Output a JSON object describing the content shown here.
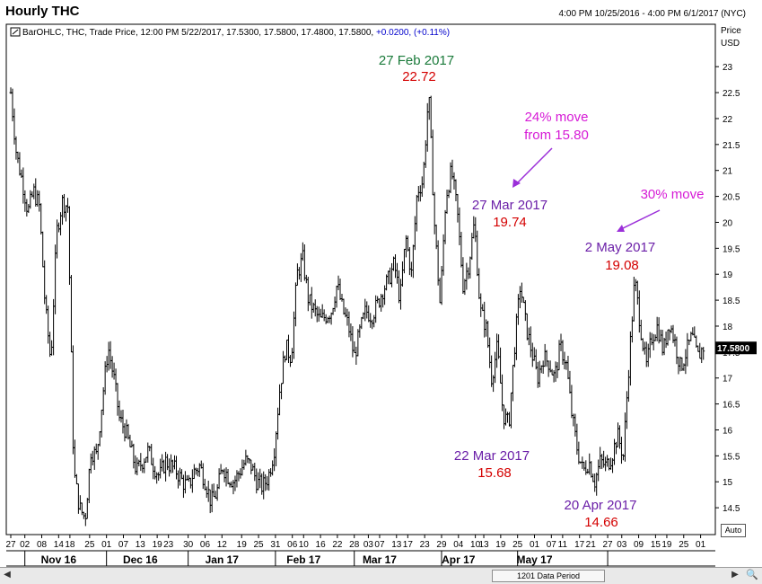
{
  "header": {
    "title": "Hourly THC",
    "date_range": "4:00 PM 10/25/2016 - 4:00 PM 6/1/2017 (NYC)"
  },
  "legend": {
    "text": "BarOHLC, THC, Trade Price, 12:00 PM 5/22/2017, 17.5300, 17.5800, 17.4800, 17.5800, ",
    "change": "+0.0200, (+0.11%)",
    "change_color": "#0000cc"
  },
  "controls": {
    "scroll_label": "1201 Data Period",
    "auto_label": "Auto"
  },
  "colors": {
    "bars": "#000000",
    "date_text": "#6b1fa8",
    "feb_date_text": "#1a7a3a",
    "price_text": "#d40000",
    "move_text": "#d61ad6",
    "arrow": "#9b2fd9"
  },
  "chart_data": {
    "type": "bar",
    "style": "OHLC",
    "symbol": "THC",
    "y_axis_title": [
      "Price",
      "USD"
    ],
    "ylim": [
      14.0,
      23.8
    ],
    "y_ticks": [
      14.5,
      15,
      15.5,
      16,
      16.5,
      17,
      17.5,
      18,
      18.5,
      19,
      19.5,
      20,
      20.5,
      21,
      21.5,
      22,
      22.5,
      23
    ],
    "y_tick_labels": [
      "14.5",
      "15",
      "15.5",
      "16",
      "16.5",
      "17",
      "17.5",
      "18",
      "18.5",
      "19",
      "19.5",
      "20",
      "20.5",
      "21",
      "21.5",
      "22",
      "22.5",
      "23"
    ],
    "last_price_label": "17.5800",
    "last_price": 17.58,
    "x_day_labels": [
      "27",
      "02",
      "08",
      "14",
      "18",
      "25",
      "01",
      "07",
      "13",
      "19",
      "23",
      "30",
      "06",
      "12",
      "19",
      "25",
      "31",
      "06",
      "10",
      "16",
      "22",
      "28",
      "03",
      "07",
      "13",
      "17",
      "23",
      "29",
      "04",
      "10",
      "13",
      "19",
      "25",
      "01",
      "07",
      "11",
      "17",
      "21",
      "27",
      "03",
      "09",
      "15",
      "19",
      "25",
      "01"
    ],
    "x_day_positions": [
      0,
      5,
      11,
      17,
      21,
      28,
      34,
      40,
      46,
      52,
      56,
      63,
      69,
      75,
      82,
      88,
      94,
      100,
      104,
      110,
      116,
      122,
      127,
      131,
      137,
      141,
      147,
      153,
      159,
      165,
      168,
      174,
      180,
      186,
      192,
      196,
      202,
      206,
      212,
      217,
      223,
      229,
      233,
      239,
      245
    ],
    "x_month_labels": [
      "Nov 16",
      "Dec 16",
      "Jan 17",
      "Feb 17",
      "Mar 17",
      "Apr 17",
      "May 17"
    ],
    "x_month_positions": [
      17,
      46,
      75,
      104,
      131,
      159,
      186
    ],
    "x_month_boundaries": [
      5,
      34,
      63,
      94,
      122,
      153,
      180,
      212
    ],
    "x_total_days": 248,
    "series": [
      {
        "price_path": [
          [
            0,
            22.5
          ],
          [
            1,
            21.3
          ],
          [
            2,
            20.8
          ],
          [
            3,
            20.2
          ],
          [
            4,
            20.6
          ],
          [
            5,
            20.3
          ],
          [
            6,
            18.4
          ],
          [
            7,
            17.3
          ],
          [
            8,
            19.8
          ],
          [
            9,
            20.4
          ],
          [
            10,
            20.3
          ],
          [
            11,
            15.2
          ],
          [
            12,
            14.5
          ],
          [
            13,
            14.3
          ],
          [
            14,
            15.6
          ],
          [
            15,
            15.5
          ],
          [
            16,
            16.6
          ],
          [
            17,
            17.6
          ],
          [
            18,
            17.0
          ],
          [
            19,
            16.2
          ],
          [
            20,
            16.0
          ],
          [
            21,
            15.6
          ],
          [
            22,
            15.2
          ],
          [
            23,
            15.4
          ],
          [
            24,
            15.6
          ],
          [
            25,
            15.3
          ],
          [
            26,
            15.1
          ],
          [
            27,
            15.4
          ],
          [
            28,
            15.3
          ],
          [
            29,
            15.2
          ],
          [
            30,
            15.0
          ],
          [
            31,
            14.9
          ],
          [
            32,
            15.2
          ],
          [
            33,
            15.3
          ],
          [
            34,
            15.0
          ],
          [
            35,
            14.6
          ],
          [
            36,
            14.8
          ],
          [
            37,
            15.3
          ],
          [
            38,
            15.1
          ],
          [
            39,
            15.0
          ],
          [
            40,
            15.2
          ],
          [
            41,
            15.4
          ],
          [
            42,
            15.3
          ],
          [
            43,
            15.0
          ],
          [
            44,
            14.9
          ],
          [
            45,
            15.1
          ],
          [
            46,
            15.6
          ],
          [
            47,
            16.8
          ],
          [
            48,
            17.6
          ],
          [
            49,
            17.4
          ],
          [
            50,
            19.0
          ],
          [
            51,
            19.3
          ],
          [
            52,
            18.5
          ],
          [
            53,
            18.3
          ],
          [
            54,
            18.1
          ],
          [
            55,
            18.2
          ],
          [
            56,
            18.3
          ],
          [
            57,
            18.8
          ],
          [
            58,
            18.3
          ],
          [
            59,
            18.0
          ],
          [
            60,
            17.4
          ],
          [
            61,
            17.9
          ],
          [
            62,
            18.3
          ],
          [
            63,
            18.2
          ],
          [
            64,
            18.4
          ],
          [
            65,
            18.7
          ],
          [
            66,
            18.9
          ],
          [
            67,
            19.2
          ],
          [
            68,
            18.5
          ],
          [
            69,
            19.7
          ],
          [
            70,
            19.0
          ],
          [
            71,
            20.6
          ],
          [
            72,
            20.8
          ],
          [
            73,
            22.5
          ],
          [
            74,
            20.0
          ],
          [
            75,
            18.4
          ],
          [
            76,
            20.5
          ],
          [
            77,
            21.0
          ],
          [
            78,
            20.2
          ],
          [
            79,
            18.8
          ],
          [
            80,
            19.2
          ],
          [
            81,
            20.0
          ],
          [
            82,
            18.3
          ],
          [
            83,
            18.0
          ],
          [
            84,
            17.0
          ],
          [
            85,
            17.6
          ],
          [
            86,
            16.3
          ],
          [
            87,
            16.1
          ],
          [
            88,
            17.6
          ],
          [
            89,
            18.8
          ],
          [
            90,
            18.0
          ],
          [
            91,
            17.5
          ],
          [
            92,
            17.0
          ],
          [
            93,
            17.4
          ],
          [
            94,
            17.3
          ],
          [
            95,
            17.0
          ],
          [
            96,
            17.6
          ],
          [
            97,
            17.3
          ],
          [
            98,
            16.3
          ],
          [
            99,
            15.6
          ],
          [
            100,
            15.2
          ],
          [
            101,
            15.4
          ],
          [
            102,
            15.0
          ],
          [
            103,
            15.4
          ],
          [
            104,
            15.3
          ],
          [
            105,
            15.5
          ],
          [
            106,
            15.9
          ],
          [
            107,
            15.5
          ],
          [
            108,
            17.3
          ],
          [
            109,
            18.9
          ],
          [
            110,
            18.0
          ],
          [
            111,
            17.2
          ],
          [
            112,
            17.8
          ],
          [
            113,
            18.0
          ],
          [
            114,
            17.5
          ],
          [
            115,
            18.1
          ],
          [
            116,
            17.7
          ],
          [
            117,
            17.2
          ],
          [
            118,
            17.5
          ],
          [
            119,
            17.8
          ],
          [
            120,
            17.4
          ],
          [
            121,
            17.6
          ]
        ],
        "note": "day-index vs approximate price, hourly OHLC bars"
      }
    ],
    "annotations": [
      {
        "date": "27 Feb 2017",
        "price": "22.72"
      },
      {
        "date": "27 Mar 2017",
        "price": "19.74"
      },
      {
        "date": "22 Mar 2017",
        "price": "15.68"
      },
      {
        "date": "20 Apr 2017",
        "price": "14.66"
      },
      {
        "date": "2 May 2017",
        "price": "19.08"
      },
      {
        "text_line1": "24% move",
        "text_line2": "from 15.80"
      },
      {
        "text_line1": "30% move"
      }
    ]
  }
}
